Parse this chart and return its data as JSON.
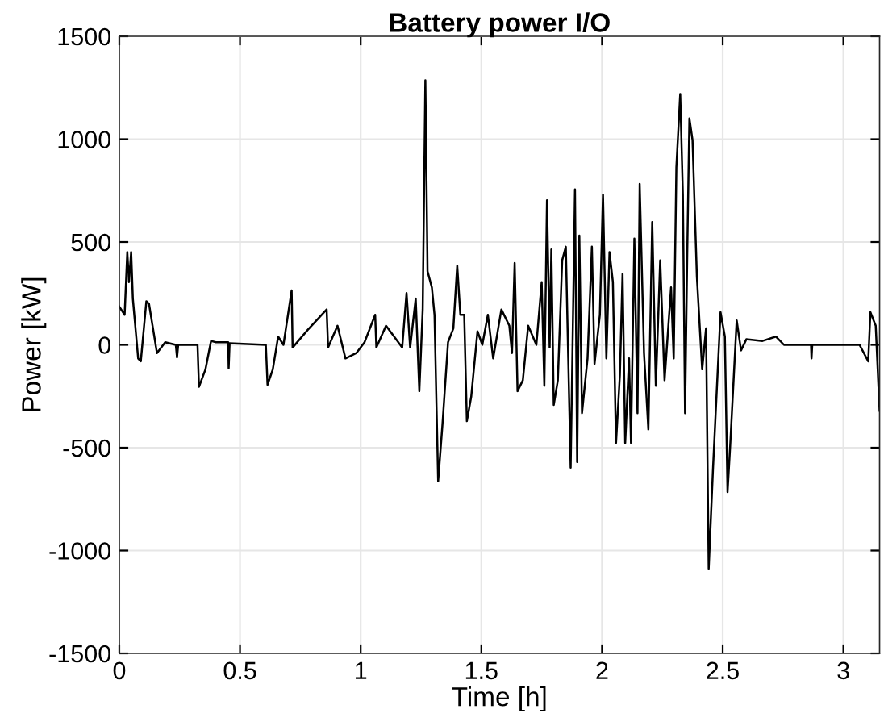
{
  "chart_data": {
    "type": "line",
    "title": "Battery power I/O",
    "xlabel": "Time [h]",
    "ylabel": "Power [kW]",
    "xlim": [
      0,
      3.15
    ],
    "ylim": [
      -1500,
      1500
    ],
    "xticks": [
      0,
      0.5,
      1,
      1.5,
      2,
      2.5,
      3
    ],
    "yticks": [
      -1500,
      -1000,
      -500,
      0,
      500,
      1000,
      1500
    ],
    "grid": true,
    "series": [
      {
        "color": "#000000",
        "x": [
          0,
          0.022,
          0.033,
          0.04,
          0.049,
          0.056,
          0.078,
          0.089,
          0.112,
          0.123,
          0.156,
          0.19,
          0.234,
          0.239,
          0.244,
          0.324,
          0.33,
          0.357,
          0.38,
          0.4,
          0.451,
          0.453,
          0.457,
          0.607,
          0.614,
          0.636,
          0.658,
          0.68,
          0.714,
          0.718,
          0.78,
          0.859,
          0.865,
          0.904,
          0.937,
          0.982,
          1.016,
          1.06,
          1.065,
          1.105,
          1.172,
          1.19,
          1.205,
          1.228,
          1.243,
          1.257,
          1.268,
          1.277,
          1.295,
          1.306,
          1.321,
          1.339,
          1.362,
          1.384,
          1.4,
          1.413,
          1.429,
          1.44,
          1.458,
          1.484,
          1.504,
          1.527,
          1.549,
          1.583,
          1.616,
          1.627,
          1.638,
          1.65,
          1.672,
          1.694,
          1.728,
          1.75,
          1.761,
          1.772,
          1.783,
          1.79,
          1.8,
          1.817,
          1.835,
          1.85,
          1.86,
          1.87,
          1.888,
          1.897,
          1.906,
          1.917,
          1.94,
          1.958,
          1.969,
          1.991,
          2.004,
          2.018,
          2.031,
          2.045,
          2.058,
          2.074,
          2.085,
          2.096,
          2.112,
          2.12,
          2.134,
          2.147,
          2.156,
          2.174,
          2.192,
          2.208,
          2.223,
          2.241,
          2.259,
          2.286,
          2.297,
          2.308,
          2.324,
          2.335,
          2.344,
          2.353,
          2.362,
          2.375,
          2.393,
          2.415,
          2.431,
          2.442,
          2.46,
          2.491,
          2.509,
          2.52,
          2.531,
          2.558,
          2.576,
          2.598,
          2.665,
          2.721,
          2.754,
          2.866,
          2.868,
          2.871,
          3.067,
          3.103,
          3.112,
          3.134,
          3.15
        ],
        "values": [
          186,
          146,
          451,
          305,
          451,
          225,
          -66,
          -80,
          212,
          199,
          -40,
          13,
          0,
          -61,
          0,
          0,
          -204,
          -119,
          19,
          13,
          13,
          -114,
          8,
          0,
          -194,
          -119,
          40,
          0,
          265,
          -13,
          72,
          172,
          -13,
          93,
          -66,
          -40,
          13,
          146,
          -13,
          93,
          -13,
          252,
          -13,
          225,
          -225,
          172,
          1286,
          358,
          279,
          146,
          -663,
          -385,
          13,
          80,
          385,
          146,
          146,
          -371,
          -252,
          66,
          0,
          146,
          -66,
          172,
          93,
          -40,
          398,
          -225,
          -172,
          93,
          0,
          305,
          -199,
          703,
          -13,
          464,
          -292,
          -172,
          411,
          477,
          -66,
          -597,
          756,
          -570,
          531,
          -332,
          -66,
          477,
          -93,
          146,
          730,
          -66,
          451,
          305,
          -477,
          -146,
          345,
          -477,
          -66,
          -477,
          517,
          -332,
          782,
          -40,
          -411,
          597,
          -199,
          411,
          -172,
          279,
          -66,
          862,
          1220,
          730,
          -332,
          438,
          1101,
          995,
          332,
          -119,
          80,
          -1088,
          -597,
          159,
          40,
          -716,
          -491,
          119,
          -27,
          27,
          19,
          40,
          0,
          0,
          -66,
          0,
          0,
          -80,
          159,
          93,
          -320
        ]
      }
    ]
  }
}
